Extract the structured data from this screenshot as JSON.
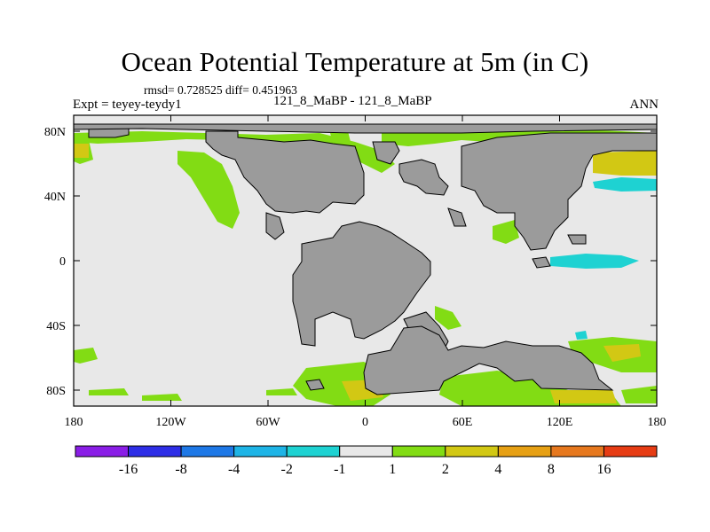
{
  "title": "Ocean Potential Temperature at 5m (in C)",
  "stats": "rmsd= 0.728525 diff= 0.451963",
  "subtitle_left": "Expt = teyey-teydy1",
  "subtitle_center": "121_8_MaBP - 121_8_MaBP",
  "subtitle_right": "ANN",
  "map": {
    "lat_labels": [
      "80N",
      "40N",
      "0",
      "40S",
      "80S"
    ],
    "lon_labels": [
      "180",
      "120W",
      "60W",
      "0",
      "60E",
      "120E",
      "180"
    ],
    "land_color": "#9b9b9b",
    "background_color": "#e8e8e8"
  },
  "colorbar": {
    "colors": [
      "#8a1ee6",
      "#2e2ee6",
      "#1e78e6",
      "#1eb4e6",
      "#1ed2d2",
      "#e8e8e8",
      "#82dc14",
      "#d2c814",
      "#e6a014",
      "#e6781e",
      "#e63c14"
    ],
    "labels": [
      "-16",
      "-8",
      "-4",
      "-2",
      "-1",
      "1",
      "2",
      "4",
      "8",
      "16"
    ]
  }
}
